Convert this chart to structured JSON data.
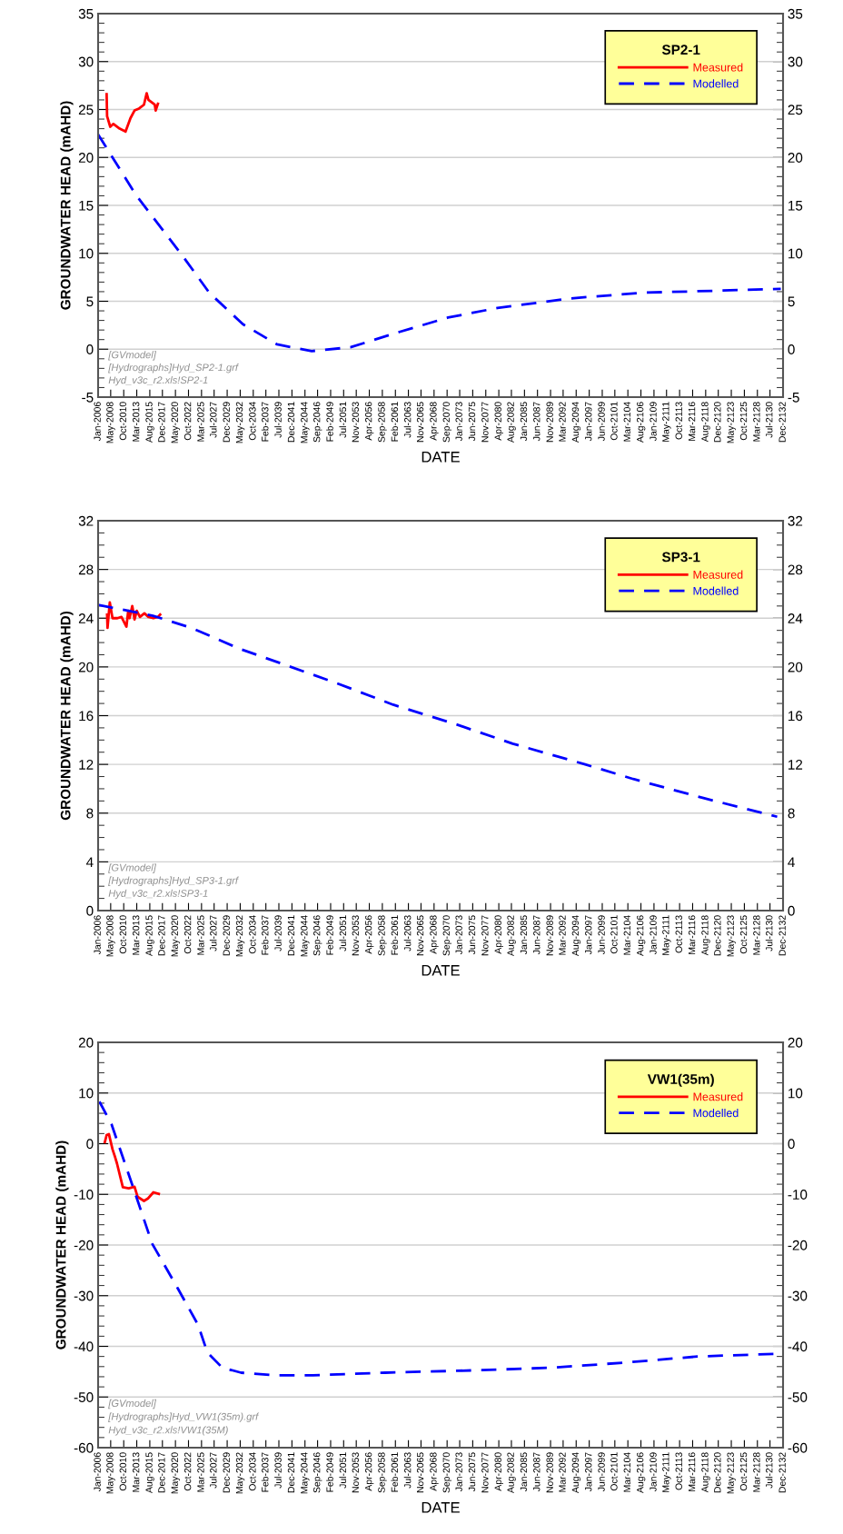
{
  "chart_data": [
    {
      "type": "line",
      "xlabel": "DATE",
      "ylabel": "GROUNDWATER HEAD (mAHD)",
      "legend_title": "SP2-1",
      "legend": "top right",
      "grid": "y",
      "annotations": [
        "[GVmodel]",
        "[Hydrographs]Hyd_SP2-1.grf",
        "Hyd_v3c_r2.xls!SP2-1"
      ],
      "xlim": [
        "2006-01",
        "2132-12"
      ],
      "xticks": [
        {
          "value": "2006-01",
          "label": "Jan-2006"
        },
        {
          "value": "2008-05",
          "label": "May-2008"
        },
        {
          "value": "2010-10",
          "label": "Oct-2010"
        },
        {
          "value": "2013-03",
          "label": "Mar-2013"
        },
        {
          "value": "2015-08",
          "label": "Aug-2015"
        },
        {
          "value": "2017-12",
          "label": "Dec-2017"
        },
        {
          "value": "2020-05",
          "label": "May-2020"
        },
        {
          "value": "2022-10",
          "label": "Oct-2022"
        },
        {
          "value": "2025-03",
          "label": "Mar-2025"
        },
        {
          "value": "2027-07",
          "label": "Jul-2027"
        },
        {
          "value": "2029-12",
          "label": "Dec-2029"
        },
        {
          "value": "2032-05",
          "label": "May-2032"
        },
        {
          "value": "2034-10",
          "label": "Oct-2034"
        },
        {
          "value": "2037-02",
          "label": "Feb-2037"
        },
        {
          "value": "2039-07",
          "label": "Jul-2039"
        },
        {
          "value": "2041-12",
          "label": "Dec-2041"
        },
        {
          "value": "2044-05",
          "label": "May-2044"
        },
        {
          "value": "2046-09",
          "label": "Sep-2046"
        },
        {
          "value": "2049-02",
          "label": "Feb-2049"
        },
        {
          "value": "2051-07",
          "label": "Jul-2051"
        },
        {
          "value": "2053-11",
          "label": "Nov-2053"
        },
        {
          "value": "2056-04",
          "label": "Apr-2056"
        },
        {
          "value": "2058-09",
          "label": "Sep-2058"
        },
        {
          "value": "2061-02",
          "label": "Feb-2061"
        },
        {
          "value": "2063-07",
          "label": "Jul-2063"
        },
        {
          "value": "2065-11",
          "label": "Nov-2065"
        },
        {
          "value": "2068-04",
          "label": "Apr-2068"
        },
        {
          "value": "2070-09",
          "label": "Sep-2070"
        },
        {
          "value": "2073-01",
          "label": "Jan-2073"
        },
        {
          "value": "2075-06",
          "label": "Jun-2075"
        },
        {
          "value": "2077-11",
          "label": "Nov-2077"
        },
        {
          "value": "2080-04",
          "label": "Apr-2080"
        },
        {
          "value": "2082-08",
          "label": "Aug-2082"
        },
        {
          "value": "2085-01",
          "label": "Jan-2085"
        },
        {
          "value": "2087-06",
          "label": "Jun-2087"
        },
        {
          "value": "2089-11",
          "label": "Nov-2089"
        },
        {
          "value": "2092-03",
          "label": "Mar-2092"
        },
        {
          "value": "2094-08",
          "label": "Aug-2094"
        },
        {
          "value": "2097-01",
          "label": "Jan-2097"
        },
        {
          "value": "2099-06",
          "label": "Jun-2099"
        },
        {
          "value": "2101-10",
          "label": "Oct-2101"
        },
        {
          "value": "2104-03",
          "label": "Mar-2104"
        },
        {
          "value": "2106-08",
          "label": "Aug-2106"
        },
        {
          "value": "2109-01",
          "label": "Jan-2109"
        },
        {
          "value": "2111-05",
          "label": "May-2111"
        },
        {
          "value": "2113-10",
          "label": "Oct-2113"
        },
        {
          "value": "2116-03",
          "label": "Mar-2116"
        },
        {
          "value": "2118-08",
          "label": "Aug-2118"
        },
        {
          "value": "2120-12",
          "label": "Dec-2120"
        },
        {
          "value": "2123-05",
          "label": "May-2123"
        },
        {
          "value": "2125-10",
          "label": "Oct-2125"
        },
        {
          "value": "2128-03",
          "label": "Mar-2128"
        },
        {
          "value": "2130-07",
          "label": "Jul-2130"
        },
        {
          "value": "2132-12",
          "label": "Dec-2132"
        }
      ],
      "ylim": [
        -5,
        35
      ],
      "yticks": [
        -5,
        0,
        5,
        10,
        15,
        20,
        25,
        30,
        35
      ],
      "y2lim": [
        -5,
        35
      ],
      "y2ticks": [
        -5,
        0,
        5,
        10,
        15,
        20,
        25,
        30,
        35
      ],
      "series": [
        {
          "name": "Measured",
          "color": "#ff0000",
          "line_style": "solid",
          "x": [
            "2007-08",
            "2007-09",
            "2008-04",
            "2008-11",
            "2010-01",
            "2011-02",
            "2012-01",
            "2012-10",
            "2013-08",
            "2014-07",
            "2015-01",
            "2015-05",
            "2016-07",
            "2016-09",
            "2017-02"
          ],
          "values": [
            26.6,
            24.3,
            23.2,
            23.5,
            23.0,
            22.7,
            24.1,
            24.9,
            25.1,
            25.5,
            26.7,
            26.0,
            25.5,
            24.9,
            25.6
          ]
        },
        {
          "name": "Modelled",
          "color": "#0000ff",
          "line_style": "dashed",
          "x": [
            "2006-01",
            "2013-01",
            "2022-02",
            "2026-08",
            "2032-11",
            "2039-03",
            "2045-08",
            "2052-10",
            "2061-11",
            "2070-11",
            "2080-01",
            "2093-08",
            "2107-03",
            "2120-10",
            "2132-07"
          ],
          "values": [
            22.4,
            16.1,
            9.4,
            5.9,
            2.6,
            0.5,
            -0.2,
            0.2,
            1.8,
            3.3,
            4.3,
            5.3,
            5.9,
            6.1,
            6.3
          ]
        }
      ]
    },
    {
      "type": "line",
      "xlabel": "DATE",
      "ylabel": "GROUNDWATER HEAD (mAHD)",
      "legend_title": "SP3-1",
      "legend": "top right",
      "grid": "y",
      "annotations": [
        "[GVmodel]",
        "[Hydrographs]Hyd_SP3-1.grf",
        "Hyd_v3c_r2.xls!SP3-1"
      ],
      "xlim": [
        "2006-01",
        "2132-12"
      ],
      "xticks": [
        {
          "value": "2006-01",
          "label": "Jan-2006"
        },
        {
          "value": "2008-05",
          "label": "May-2008"
        },
        {
          "value": "2010-10",
          "label": "Oct-2010"
        },
        {
          "value": "2013-03",
          "label": "Mar-2013"
        },
        {
          "value": "2015-08",
          "label": "Aug-2015"
        },
        {
          "value": "2017-12",
          "label": "Dec-2017"
        },
        {
          "value": "2020-05",
          "label": "May-2020"
        },
        {
          "value": "2022-10",
          "label": "Oct-2022"
        },
        {
          "value": "2025-03",
          "label": "Mar-2025"
        },
        {
          "value": "2027-07",
          "label": "Jul-2027"
        },
        {
          "value": "2029-12",
          "label": "Dec-2029"
        },
        {
          "value": "2032-05",
          "label": "May-2032"
        },
        {
          "value": "2034-10",
          "label": "Oct-2034"
        },
        {
          "value": "2037-02",
          "label": "Feb-2037"
        },
        {
          "value": "2039-07",
          "label": "Jul-2039"
        },
        {
          "value": "2041-12",
          "label": "Dec-2041"
        },
        {
          "value": "2044-05",
          "label": "May-2044"
        },
        {
          "value": "2046-09",
          "label": "Sep-2046"
        },
        {
          "value": "2049-02",
          "label": "Feb-2049"
        },
        {
          "value": "2051-07",
          "label": "Jul-2051"
        },
        {
          "value": "2053-11",
          "label": "Nov-2053"
        },
        {
          "value": "2056-04",
          "label": "Apr-2056"
        },
        {
          "value": "2058-09",
          "label": "Sep-2058"
        },
        {
          "value": "2061-02",
          "label": "Feb-2061"
        },
        {
          "value": "2063-07",
          "label": "Jul-2063"
        },
        {
          "value": "2065-11",
          "label": "Nov-2065"
        },
        {
          "value": "2068-04",
          "label": "Apr-2068"
        },
        {
          "value": "2070-09",
          "label": "Sep-2070"
        },
        {
          "value": "2073-01",
          "label": "Jan-2073"
        },
        {
          "value": "2075-06",
          "label": "Jun-2075"
        },
        {
          "value": "2077-11",
          "label": "Nov-2077"
        },
        {
          "value": "2080-04",
          "label": "Apr-2080"
        },
        {
          "value": "2082-08",
          "label": "Aug-2082"
        },
        {
          "value": "2085-01",
          "label": "Jan-2085"
        },
        {
          "value": "2087-06",
          "label": "Jun-2087"
        },
        {
          "value": "2089-11",
          "label": "Nov-2089"
        },
        {
          "value": "2092-03",
          "label": "Mar-2092"
        },
        {
          "value": "2094-08",
          "label": "Aug-2094"
        },
        {
          "value": "2097-01",
          "label": "Jan-2097"
        },
        {
          "value": "2099-06",
          "label": "Jun-2099"
        },
        {
          "value": "2101-10",
          "label": "Oct-2101"
        },
        {
          "value": "2104-03",
          "label": "Mar-2104"
        },
        {
          "value": "2106-08",
          "label": "Aug-2106"
        },
        {
          "value": "2109-01",
          "label": "Jan-2109"
        },
        {
          "value": "2111-05",
          "label": "May-2111"
        },
        {
          "value": "2113-10",
          "label": "Oct-2113"
        },
        {
          "value": "2116-03",
          "label": "Mar-2116"
        },
        {
          "value": "2118-08",
          "label": "Aug-2118"
        },
        {
          "value": "2120-12",
          "label": "Dec-2120"
        },
        {
          "value": "2123-05",
          "label": "May-2123"
        },
        {
          "value": "2125-10",
          "label": "Oct-2125"
        },
        {
          "value": "2128-03",
          "label": "Mar-2128"
        },
        {
          "value": "2130-07",
          "label": "Jul-2130"
        },
        {
          "value": "2132-12",
          "label": "Dec-2132"
        }
      ],
      "ylim": [
        0,
        32
      ],
      "yticks": [
        0,
        4,
        8,
        12,
        16,
        20,
        24,
        28,
        32
      ],
      "y2lim": [
        0,
        32
      ],
      "y2ticks": [
        0,
        4,
        8,
        12,
        16,
        20,
        24,
        28,
        32
      ],
      "series": [
        {
          "name": "Measured",
          "color": "#ff0000",
          "line_style": "solid",
          "x": [
            "2007-09",
            "2007-10",
            "2008-03",
            "2008-09",
            "2009-08",
            "2010-05",
            "2011-04",
            "2011-08",
            "2011-11",
            "2012-05",
            "2012-10",
            "2013-03",
            "2013-10",
            "2014-08",
            "2015-05",
            "2016-04",
            "2017-02",
            "2017-07"
          ],
          "values": [
            24.3,
            23.2,
            25.3,
            24.0,
            24.0,
            24.1,
            23.3,
            24.6,
            24.0,
            25.0,
            23.9,
            24.6,
            24.1,
            24.4,
            24.1,
            24.0,
            24.1,
            24.3
          ]
        },
        {
          "name": "Modelled",
          "color": "#0000ff",
          "line_style": "dashed",
          "x": [
            "2006-01",
            "2016-03",
            "2023-05",
            "2032-03",
            "2041-02",
            "2050-01",
            "2060-09",
            "2072-04",
            "2082-11",
            "2096-04",
            "2105-03",
            "2118-07",
            "2131-11"
          ],
          "values": [
            25.1,
            24.2,
            23.2,
            21.5,
            20.1,
            18.7,
            16.9,
            15.3,
            13.7,
            12.0,
            10.8,
            9.2,
            7.7
          ]
        }
      ]
    },
    {
      "type": "line",
      "xlabel": "DATE",
      "ylabel": "GROUNDWATER HEAD (mAHD)",
      "legend_title": "VW1(35m)",
      "legend": "top right",
      "grid": "y",
      "annotations": [
        "[GVmodel]",
        "[Hydrographs]Hyd_VW1(35m).grf",
        "Hyd_v3c_r2.xls!VW1(35M)"
      ],
      "xlim": [
        "2006-01",
        "2132-12"
      ],
      "xticks": [
        {
          "value": "2006-01",
          "label": "Jan-2006"
        },
        {
          "value": "2008-05",
          "label": "May-2008"
        },
        {
          "value": "2010-10",
          "label": "Oct-2010"
        },
        {
          "value": "2013-03",
          "label": "Mar-2013"
        },
        {
          "value": "2015-08",
          "label": "Aug-2015"
        },
        {
          "value": "2017-12",
          "label": "Dec-2017"
        },
        {
          "value": "2020-05",
          "label": "May-2020"
        },
        {
          "value": "2022-10",
          "label": "Oct-2022"
        },
        {
          "value": "2025-03",
          "label": "Mar-2025"
        },
        {
          "value": "2027-07",
          "label": "Jul-2027"
        },
        {
          "value": "2029-12",
          "label": "Dec-2029"
        },
        {
          "value": "2032-05",
          "label": "May-2032"
        },
        {
          "value": "2034-10",
          "label": "Oct-2034"
        },
        {
          "value": "2037-02",
          "label": "Feb-2037"
        },
        {
          "value": "2039-07",
          "label": "Jul-2039"
        },
        {
          "value": "2041-12",
          "label": "Dec-2041"
        },
        {
          "value": "2044-05",
          "label": "May-2044"
        },
        {
          "value": "2046-09",
          "label": "Sep-2046"
        },
        {
          "value": "2049-02",
          "label": "Feb-2049"
        },
        {
          "value": "2051-07",
          "label": "Jul-2051"
        },
        {
          "value": "2053-11",
          "label": "Nov-2053"
        },
        {
          "value": "2056-04",
          "label": "Apr-2056"
        },
        {
          "value": "2058-09",
          "label": "Sep-2058"
        },
        {
          "value": "2061-02",
          "label": "Feb-2061"
        },
        {
          "value": "2063-07",
          "label": "Jul-2063"
        },
        {
          "value": "2065-11",
          "label": "Nov-2065"
        },
        {
          "value": "2068-04",
          "label": "Apr-2068"
        },
        {
          "value": "2070-09",
          "label": "Sep-2070"
        },
        {
          "value": "2073-01",
          "label": "Jan-2073"
        },
        {
          "value": "2075-06",
          "label": "Jun-2075"
        },
        {
          "value": "2077-11",
          "label": "Nov-2077"
        },
        {
          "value": "2080-04",
          "label": "Apr-2080"
        },
        {
          "value": "2082-08",
          "label": "Aug-2082"
        },
        {
          "value": "2085-01",
          "label": "Jan-2085"
        },
        {
          "value": "2087-06",
          "label": "Jun-2087"
        },
        {
          "value": "2089-11",
          "label": "Nov-2089"
        },
        {
          "value": "2092-03",
          "label": "Mar-2092"
        },
        {
          "value": "2094-08",
          "label": "Aug-2094"
        },
        {
          "value": "2097-01",
          "label": "Jan-2097"
        },
        {
          "value": "2099-06",
          "label": "Jun-2099"
        },
        {
          "value": "2101-10",
          "label": "Oct-2101"
        },
        {
          "value": "2104-03",
          "label": "Mar-2104"
        },
        {
          "value": "2106-08",
          "label": "Aug-2106"
        },
        {
          "value": "2109-01",
          "label": "Jan-2109"
        },
        {
          "value": "2111-05",
          "label": "May-2111"
        },
        {
          "value": "2113-10",
          "label": "Oct-2113"
        },
        {
          "value": "2116-03",
          "label": "Mar-2116"
        },
        {
          "value": "2118-08",
          "label": "Aug-2118"
        },
        {
          "value": "2120-12",
          "label": "Dec-2120"
        },
        {
          "value": "2123-05",
          "label": "May-2123"
        },
        {
          "value": "2125-10",
          "label": "Oct-2125"
        },
        {
          "value": "2128-03",
          "label": "Mar-2128"
        },
        {
          "value": "2130-07",
          "label": "Jul-2130"
        },
        {
          "value": "2132-12",
          "label": "Dec-2132"
        }
      ],
      "ylim": [
        -60,
        20
      ],
      "yticks": [
        -60,
        -50,
        -40,
        -30,
        -20,
        -10,
        0,
        10,
        20
      ],
      "y2lim": [
        -60,
        20
      ],
      "y2ticks": [
        -60,
        -50,
        -40,
        -30,
        -20,
        -10,
        0,
        10,
        20
      ],
      "series": [
        {
          "name": "Measured",
          "color": "#ff0000",
          "line_style": "solid",
          "x": [
            "2007-04",
            "2007-08",
            "2008-01",
            "2008-09",
            "2009-03",
            "2009-07",
            "2010-08",
            "2011-09",
            "2012-10",
            "2013-05",
            "2014-07",
            "2015-04",
            "2016-04",
            "2017-04"
          ],
          "values": [
            0.3,
            1.7,
            1.9,
            -1.1,
            -2.7,
            -3.9,
            -8.6,
            -8.8,
            -8.5,
            -10.5,
            -11.3,
            -10.8,
            -9.6,
            -9.9
          ]
        },
        {
          "name": "Modelled",
          "color": "#0000ff",
          "line_style": "dashed",
          "x": [
            "2006-04",
            "2008-07",
            "2012-11",
            "2016-01",
            "2020-11",
            "2024-07",
            "2026-04",
            "2029-01",
            "2032-07",
            "2038-10",
            "2045-11",
            "2059-04",
            "2077-02",
            "2090-05",
            "2103-10",
            "2117-02",
            "2131-05"
          ],
          "values": [
            8.3,
            3.8,
            -9.7,
            -19.7,
            -28.7,
            -35.7,
            -41.2,
            -44.2,
            -45.2,
            -45.7,
            -45.7,
            -45.2,
            -44.7,
            -44.2,
            -43.2,
            -42.0,
            -41.5
          ]
        }
      ]
    }
  ]
}
